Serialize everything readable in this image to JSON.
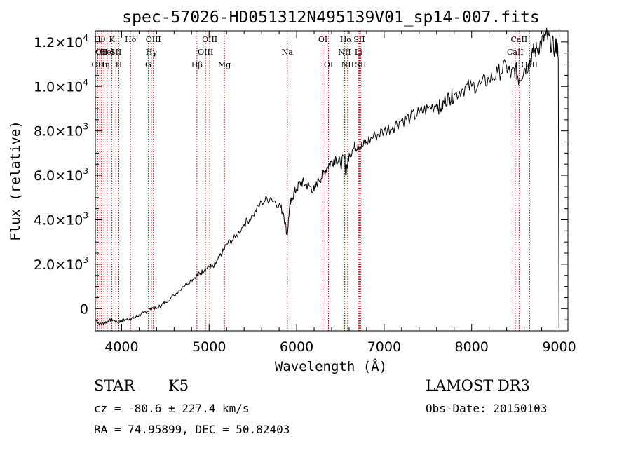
{
  "chart_data": {
    "type": "line",
    "title": "spec-57026-HD051312N495139V01_sp14-007.fits",
    "xlabel": "Wavelength (Å)",
    "ylabel": "Flux (relative)",
    "xlim": [
      3700,
      9100
    ],
    "ylim": [
      -1000,
      12500
    ],
    "x_ticks": [
      4000,
      5000,
      6000,
      7000,
      8000,
      9000
    ],
    "y_ticks": [
      {
        "value": 0,
        "mantissa": "0",
        "exp": ""
      },
      {
        "value": 2000,
        "mantissa": "2.0×10",
        "exp": "3"
      },
      {
        "value": 4000,
        "mantissa": "4.0×10",
        "exp": "3"
      },
      {
        "value": 6000,
        "mantissa": "6.0×10",
        "exp": "3"
      },
      {
        "value": 8000,
        "mantissa": "8.0×10",
        "exp": "3"
      },
      {
        "value": 10000,
        "mantissa": "1.0×10",
        "exp": "4"
      },
      {
        "value": 12000,
        "mantissa": "1.2×10",
        "exp": "4"
      }
    ],
    "series": [
      {
        "name": "spectrum",
        "x": [
          3700,
          3750,
          3800,
          3850,
          3900,
          3950,
          4000,
          4050,
          4100,
          4150,
          4200,
          4250,
          4300,
          4350,
          4400,
          4450,
          4500,
          4600,
          4700,
          4800,
          4861,
          4900,
          4950,
          5000,
          5050,
          5100,
          5150,
          5200,
          5300,
          5400,
          5500,
          5600,
          5700,
          5800,
          5850,
          5893,
          5920,
          5950,
          6000,
          6050,
          6100,
          6150,
          6200,
          6250,
          6300,
          6350,
          6400,
          6450,
          6500,
          6550,
          6563,
          6600,
          6650,
          6700,
          6750,
          6800,
          6900,
          7000,
          7100,
          7200,
          7300,
          7400,
          7500,
          7600,
          7650,
          7700,
          7750,
          7800,
          7900,
          8000,
          8100,
          8200,
          8300,
          8400,
          8450,
          8500,
          8542,
          8600,
          8650,
          8700,
          8750,
          8800,
          8850,
          8900,
          8950,
          8975,
          8990
        ],
        "values": [
          -500,
          -700,
          -650,
          -550,
          -500,
          -600,
          -550,
          -500,
          -450,
          -400,
          -300,
          -200,
          -100,
          50,
          0,
          150,
          300,
          600,
          1000,
          1300,
          1500,
          1600,
          1750,
          1900,
          1850,
          2200,
          2500,
          2900,
          3200,
          3800,
          4200,
          4800,
          5000,
          4700,
          4300,
          3300,
          4600,
          5000,
          5400,
          5700,
          5600,
          5500,
          5300,
          5800,
          6000,
          6400,
          6600,
          6800,
          6500,
          6800,
          6000,
          7000,
          7200,
          7400,
          7300,
          7500,
          7800,
          8000,
          8200,
          8500,
          8600,
          8800,
          9000,
          9200,
          9000,
          9400,
          9500,
          9600,
          9900,
          10000,
          10100,
          10300,
          10600,
          10900,
          10500,
          10800,
          10300,
          10800,
          11000,
          11500,
          11700,
          12000,
          12300,
          12000,
          11700,
          11900,
          11200
        ]
      }
    ],
    "lines": [
      {
        "wave": 3727,
        "label": "OII",
        "row": 2
      },
      {
        "wave": 3750,
        "label": "Hθ",
        "row": 0
      },
      {
        "wave": 3771,
        "label": "OII",
        "row": 1
      },
      {
        "wave": 3798,
        "label": "Hη",
        "row": 2
      },
      {
        "wave": 3835,
        "label": "HeI",
        "row": 1
      },
      {
        "wave": 3889,
        "label": "K",
        "row": 0
      },
      {
        "wave": 3934,
        "label": "SII",
        "row": 1
      },
      {
        "wave": 3968,
        "label": "H",
        "row": 2
      },
      {
        "wave": 4102,
        "label": "Hδ",
        "row": 0
      },
      {
        "wave": 4304,
        "label": "G",
        "row": 2
      },
      {
        "wave": 4340,
        "label": "Hγ",
        "row": 1
      },
      {
        "wave": 4363,
        "label": "OIII",
        "row": 0
      },
      {
        "wave": 4861,
        "label": "Hβ",
        "row": 2
      },
      {
        "wave": 4959,
        "label": "OIII",
        "row": 1
      },
      {
        "wave": 5007,
        "label": "OIII",
        "row": 0
      },
      {
        "wave": 5175,
        "label": "Mg",
        "row": 2
      },
      {
        "wave": 5893,
        "label": "Na",
        "row": 1
      },
      {
        "wave": 6300,
        "label": "OI",
        "row": 0
      },
      {
        "wave": 6364,
        "label": "OI",
        "row": 2
      },
      {
        "wave": 6548,
        "label": "NII",
        "row": 1
      },
      {
        "wave": 6563,
        "label": "Hα",
        "row": 0
      },
      {
        "wave": 6583,
        "label": "NII",
        "row": 2
      },
      {
        "wave": 6707,
        "label": "Li",
        "row": 1
      },
      {
        "wave": 6716,
        "label": "SII",
        "row": 0
      },
      {
        "wave": 6731,
        "label": "SII",
        "row": 2
      },
      {
        "wave": 8498,
        "label": "CaII",
        "row": 1
      },
      {
        "wave": 8542,
        "label": "CaII",
        "row": 0
      },
      {
        "wave": 8662,
        "label": "CaII",
        "row": 2
      }
    ]
  },
  "info": {
    "class": "STAR",
    "subclass": "K5",
    "survey": "LAMOST DR3",
    "cz": "cz = -80.6 ± 227.4 km/s",
    "obs_date": "Obs-Date: 20150103",
    "coords": "RA =  74.95899, DEC =  50.82403"
  }
}
